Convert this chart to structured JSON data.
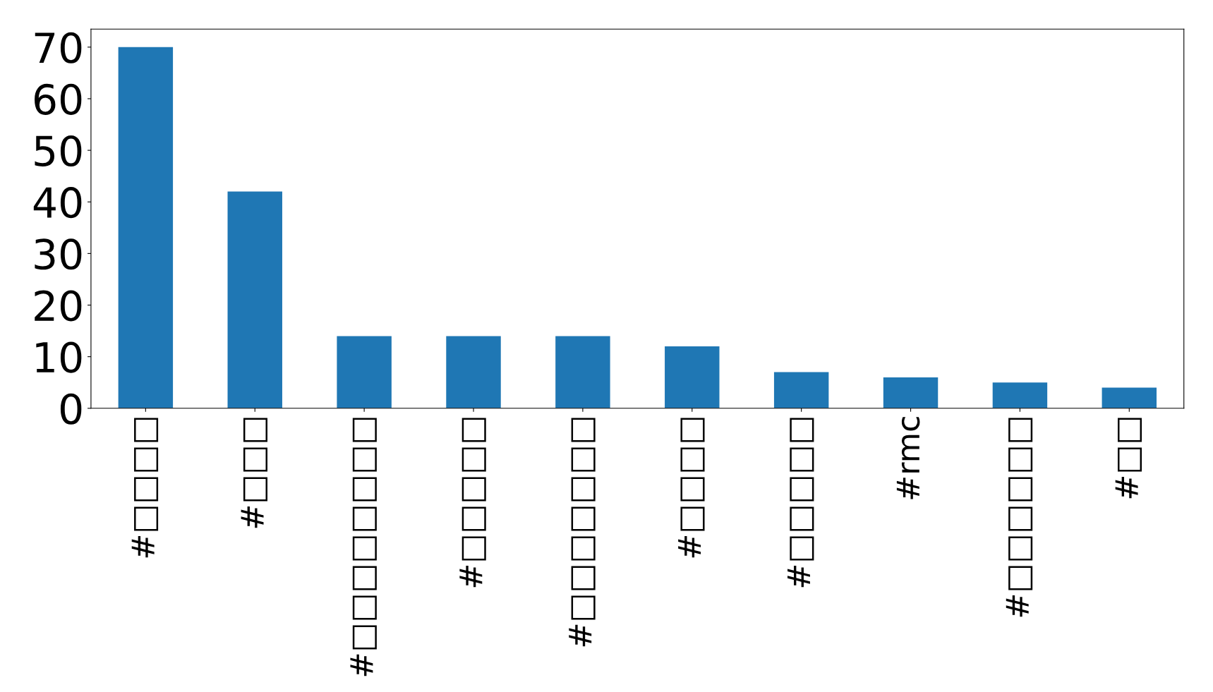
{
  "chart_data": {
    "type": "bar",
    "categories": [
      "#□□□□",
      "#□□□",
      "#□□□□□□□□",
      "#□□□□□",
      "#□□□□□□□",
      "#□□□□",
      "#□□□□□",
      "#rmc",
      "#□□□□□□",
      "#□□"
    ],
    "values": [
      70,
      42,
      14,
      14,
      14,
      12,
      7,
      6,
      5,
      4
    ],
    "color": "#1f77b4",
    "ylim": [
      0,
      73.5
    ],
    "yticks": [
      0,
      10,
      20,
      30,
      40,
      50,
      60,
      70
    ],
    "grid": false
  }
}
